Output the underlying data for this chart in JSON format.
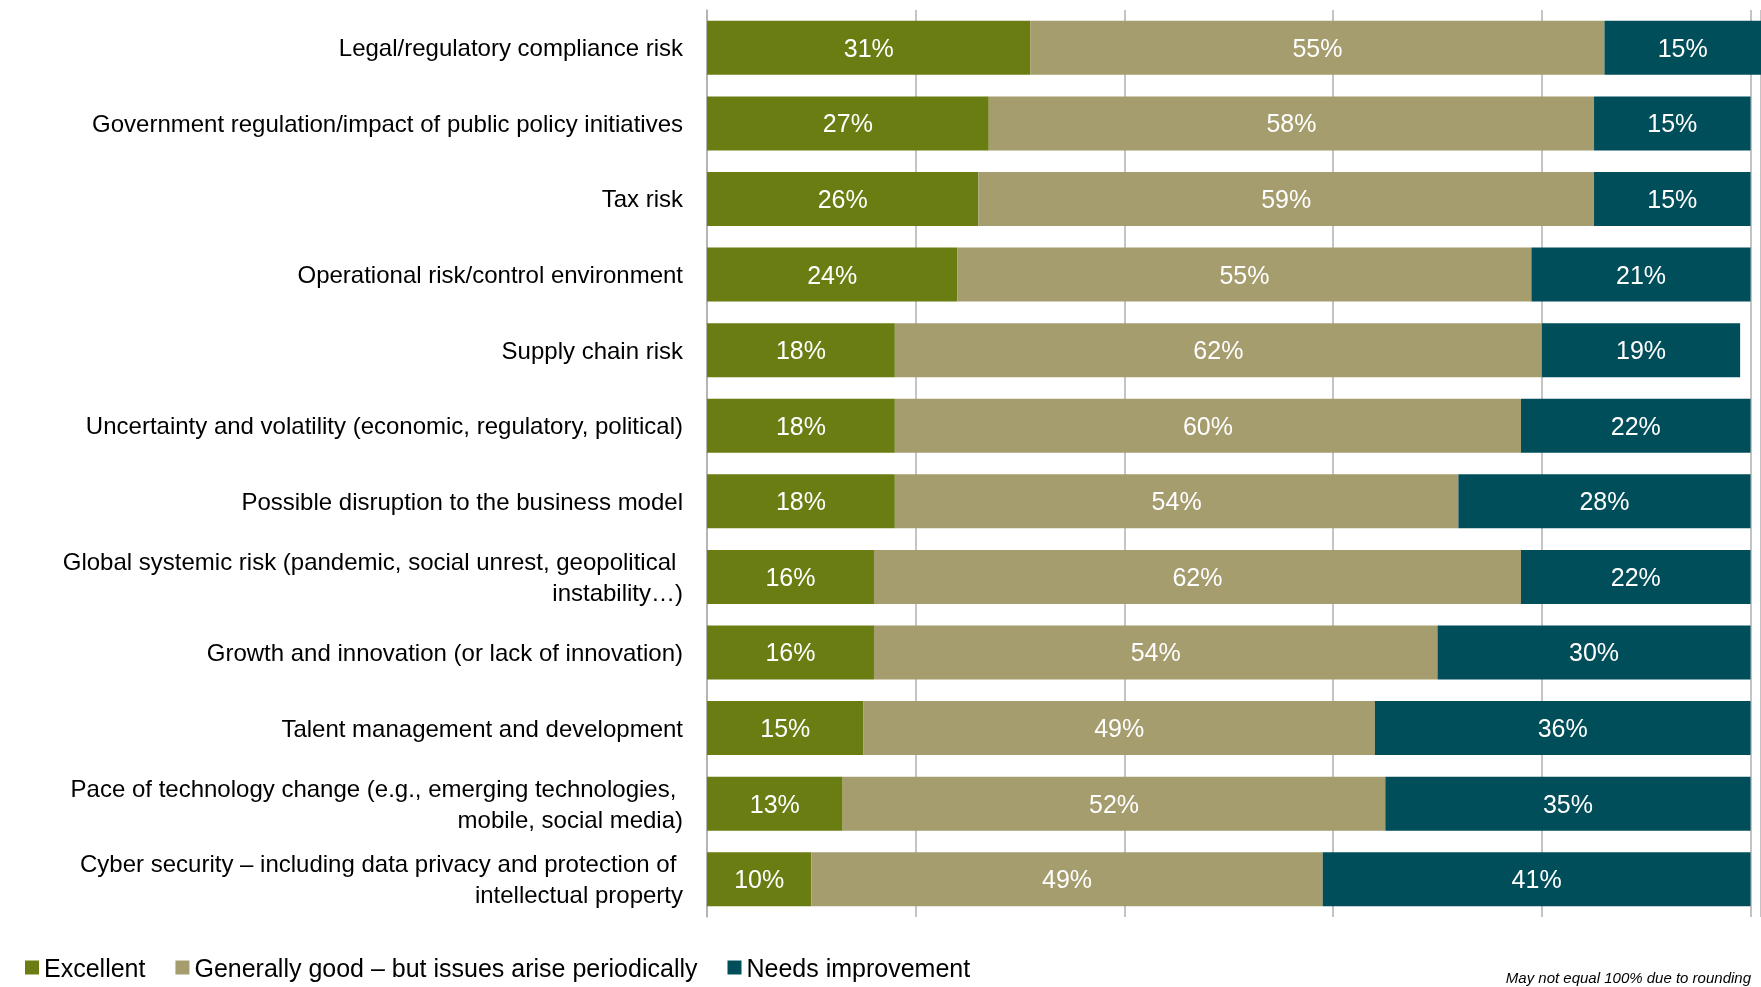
{
  "chart_data": {
    "type": "bar",
    "orientation": "horizontal",
    "stacked": true,
    "grid": "x",
    "legend": "bottom left",
    "categories": [
      "Legal/regulatory compliance risk",
      "Government regulation/impact of public policy initiatives",
      "Tax risk",
      "Operational risk/control environment",
      "Supply chain risk",
      "Uncertainty and volatility (economic, regulatory, political)",
      "Possible disruption to the business model",
      "Global systemic risk (pandemic, social unrest, geopolitical instability…)",
      "Growth and innovation (or lack of innovation)",
      "Talent management and development",
      "Pace of technology change (e.g., emerging technologies, mobile, social media)",
      "Cyber security – including data privacy and protection of intellectual property"
    ],
    "series": [
      {
        "name": "Excellent",
        "color": "#6a7d12",
        "values": [
          31,
          27,
          26,
          24,
          18,
          18,
          18,
          16,
          16,
          15,
          13,
          10
        ],
        "value_labels": [
          "31%",
          "27%",
          "26%",
          "24%",
          "18%",
          "18%",
          "18%",
          "16%",
          "16%",
          "15%",
          "13%",
          "10%"
        ]
      },
      {
        "name": "Generally good – but issues arise periodically",
        "color": "#a69d6f",
        "values": [
          55,
          58,
          59,
          55,
          62,
          60,
          54,
          62,
          54,
          49,
          52,
          49
        ],
        "value_labels": [
          "55%",
          "58%",
          "59%",
          "55%",
          "62%",
          "60%",
          "54%",
          "62%",
          "54%",
          "49%",
          "52%",
          "49%"
        ]
      },
      {
        "name": "Needs improvement",
        "color": "#004e5a",
        "values": [
          15,
          15,
          15,
          21,
          19,
          22,
          28,
          22,
          30,
          36,
          35,
          41
        ],
        "value_labels": [
          "15%",
          "15%",
          "15%",
          "21%",
          "19%",
          "22%",
          "28%",
          "22%",
          "30%",
          "36%",
          "35%",
          "41%"
        ]
      }
    ],
    "annotations": [
      "May not equal 100% due to rounding"
    ]
  }
}
